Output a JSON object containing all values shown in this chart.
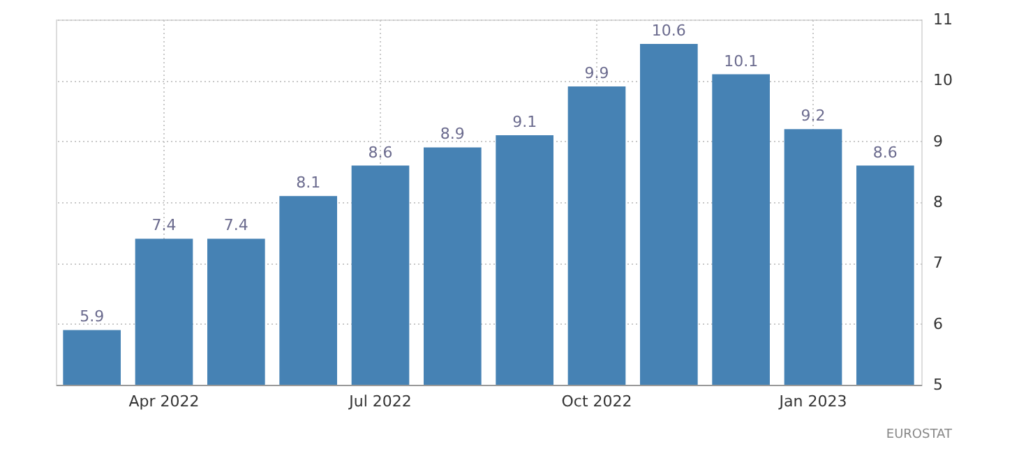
{
  "chart_data": {
    "type": "bar",
    "categories": [
      null,
      "Apr 2022",
      null,
      null,
      "Jul 2022",
      null,
      null,
      "Oct 2022",
      null,
      null,
      "Jan 2023",
      null
    ],
    "values": [
      5.9,
      7.4,
      7.4,
      8.1,
      8.6,
      8.9,
      9.1,
      9.9,
      10.6,
      10.1,
      9.2,
      8.6
    ],
    "color": "#4682b4",
    "data_labels": true,
    "ylim": [
      5,
      11
    ],
    "yticks": [
      5,
      6,
      7,
      8,
      9,
      10,
      11
    ],
    "grid": true,
    "annotations": [
      "EUROSTAT"
    ]
  }
}
